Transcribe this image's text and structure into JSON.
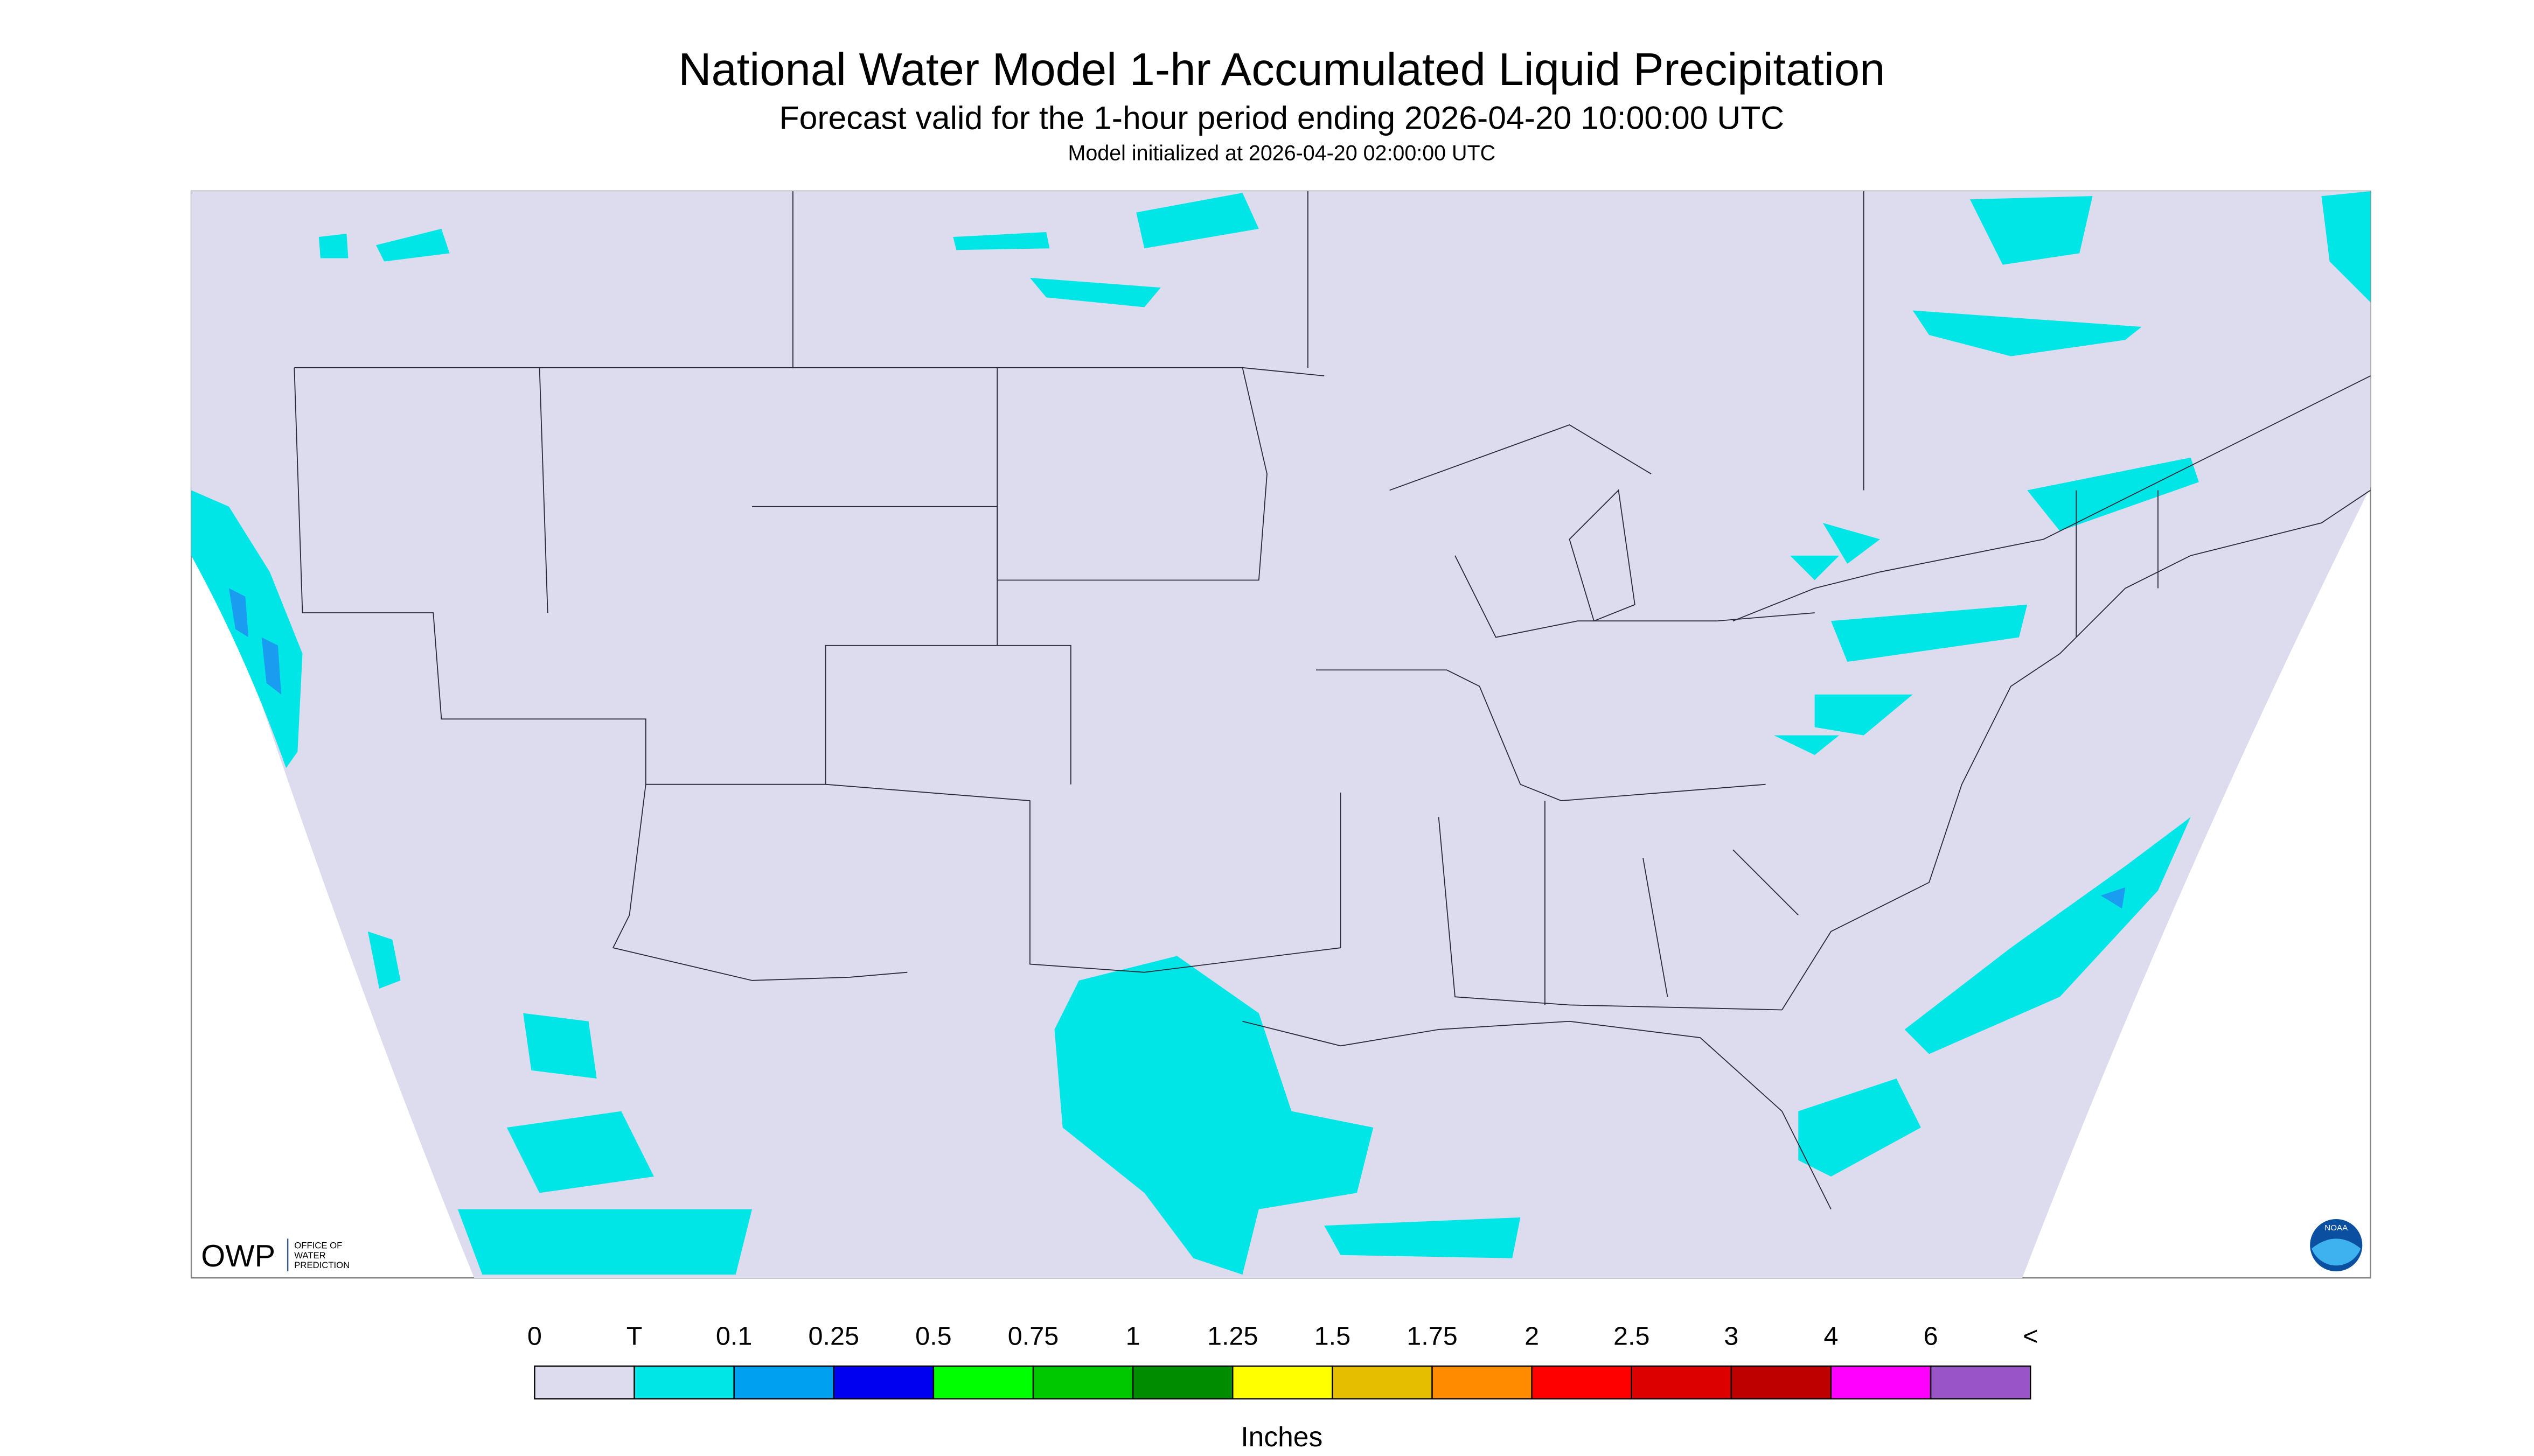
{
  "header": {
    "title": "National Water Model 1-hr Accumulated Liquid Precipitation",
    "subtitle": "Forecast valid for the 1-hour period ending 2026-04-20 10:00:00 UTC",
    "init": "Model initialized at 2026-04-20 02:00:00 UTC"
  },
  "map": {
    "logo_text": "OWP",
    "logo_subtext": [
      "OFFICE OF",
      "WATER",
      "PREDICTION"
    ],
    "noaa_text": "NOAA"
  },
  "legend": {
    "labels": [
      "0",
      "T",
      "0.1",
      "0.25",
      "0.5",
      "0.75",
      "1",
      "1.25",
      "1.5",
      "1.75",
      "2",
      "2.5",
      "3",
      "4",
      "6",
      "<"
    ],
    "colors": [
      "#dcdcee",
      "#00e6e6",
      "#00a0f0",
      "#0000f0",
      "#00ff00",
      "#00c800",
      "#008c00",
      "#ffff00",
      "#e6be00",
      "#ff8c00",
      "#ff0000",
      "#dc0000",
      "#be0000",
      "#ff00ff",
      "#9955c8"
    ],
    "unit": "Inches"
  }
}
